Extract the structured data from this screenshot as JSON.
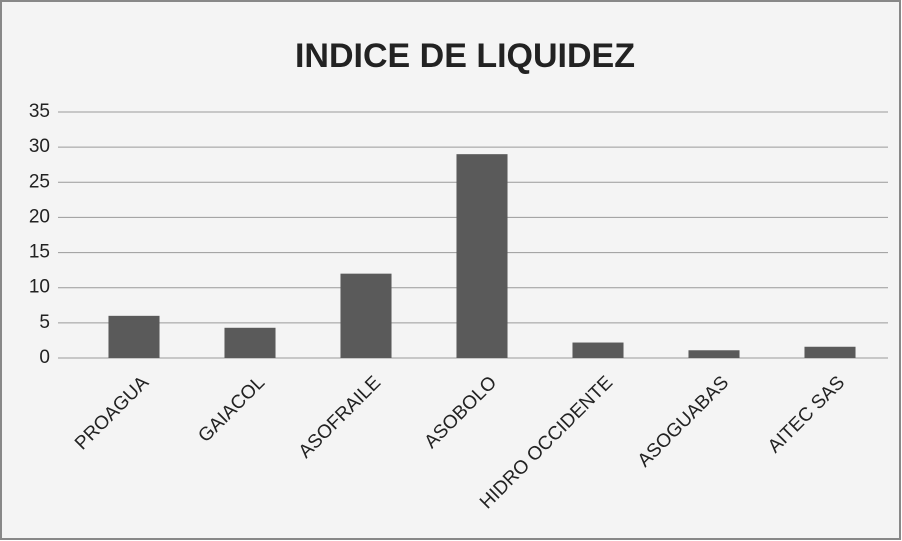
{
  "chart_data": {
    "type": "bar",
    "title": "INDICE DE LIQUIDEZ",
    "categories": [
      "PROAGUA",
      "GAIACOL",
      "ASOFRAILE",
      "ASOBOLO",
      "HIDRO OCCIDENTE",
      "ASOGUABAS",
      "AITEC SAS"
    ],
    "values": [
      6,
      4.3,
      12,
      29,
      2.2,
      1.1,
      1.6
    ],
    "color": "#5a5a5a",
    "ylim": [
      0,
      35
    ],
    "yticks": [
      0,
      5,
      10,
      15,
      20,
      25,
      30,
      35
    ],
    "grid": true
  }
}
